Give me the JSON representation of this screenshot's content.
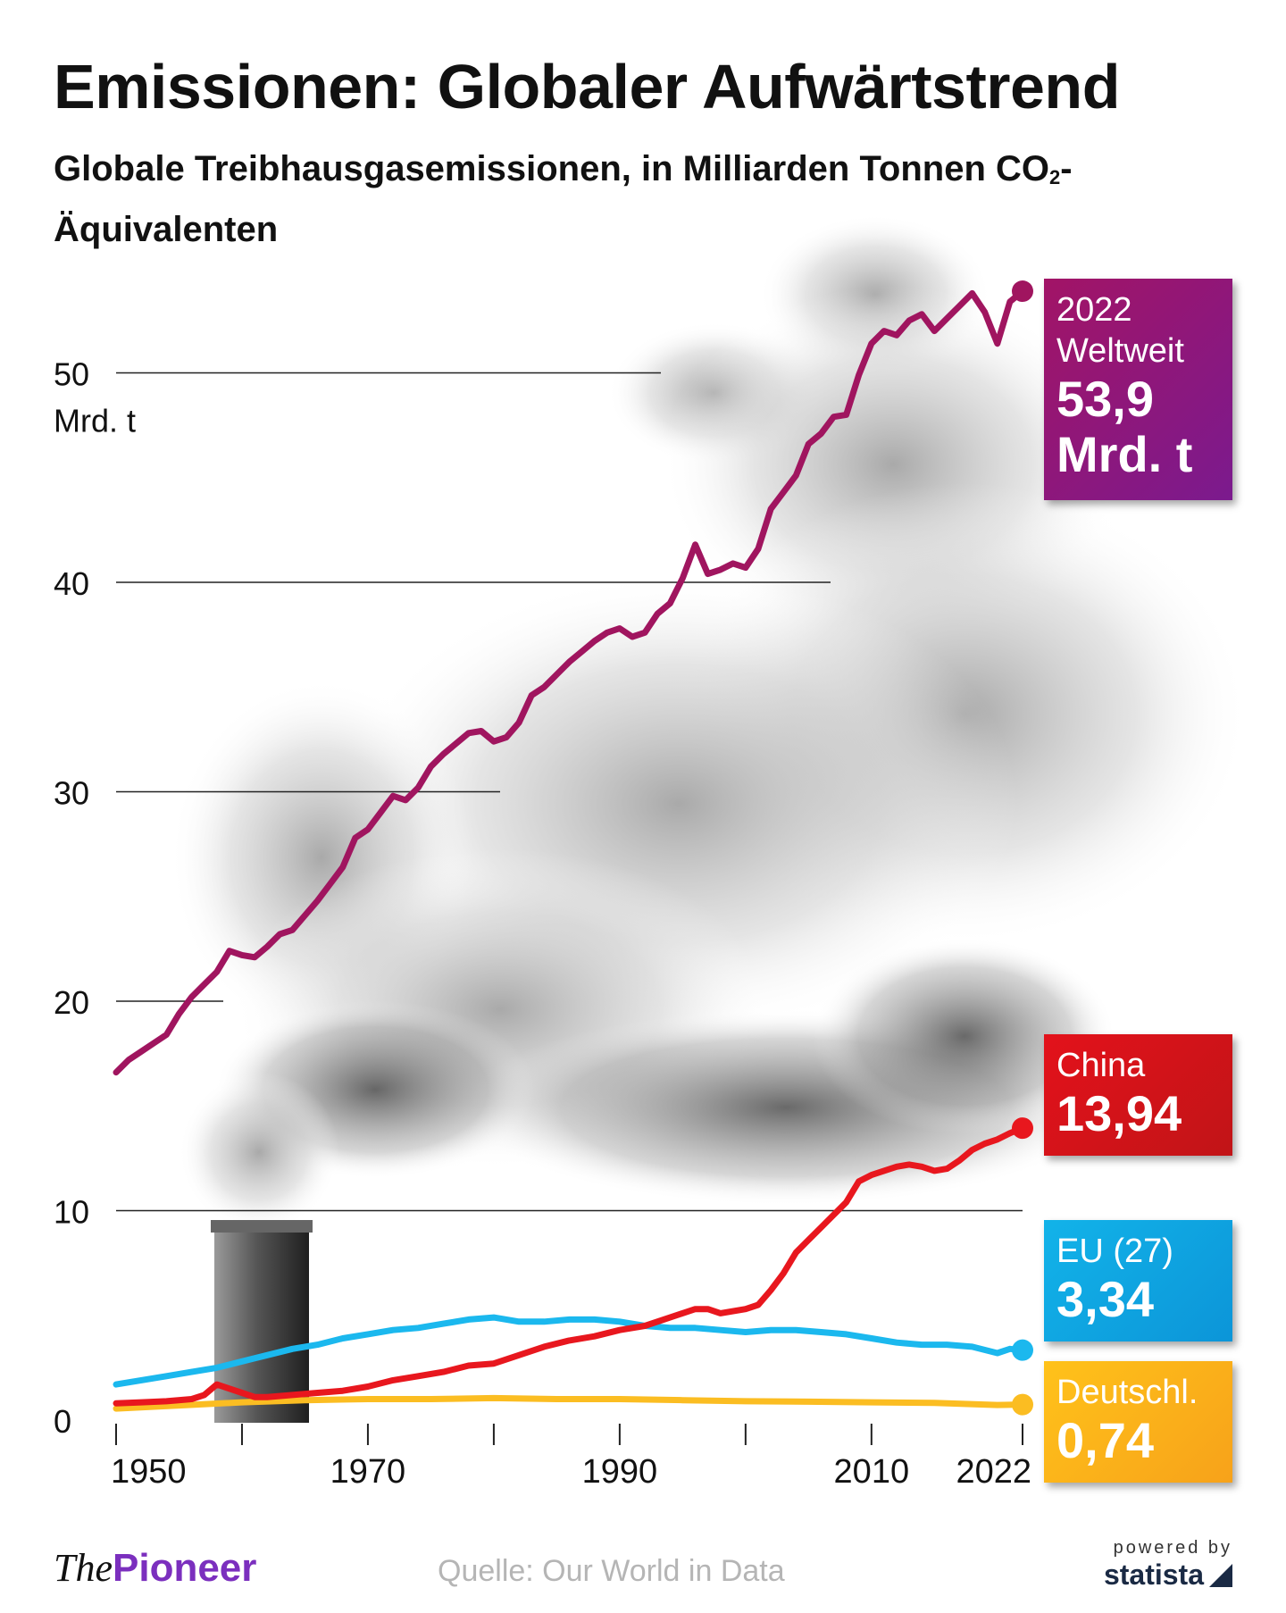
{
  "header": {
    "title": "Emissionen: Globaler Aufwärtstrend",
    "subtitle_part1": "Globale Treibhausgasemissionen, in Milliarden Tonnen CO",
    "subtitle_sub": "2",
    "subtitle_part2": "-Äquivalenten"
  },
  "chart_data": {
    "type": "line",
    "ylim": [
      0,
      55
    ],
    "xlim": [
      1950,
      2022
    ],
    "y_ticks": [
      "0",
      "10",
      "20",
      "30",
      "40",
      "50"
    ],
    "y_unit": "Mrd. t",
    "x_ticks": [
      "1950",
      "1970",
      "1990",
      "2010",
      "2022"
    ],
    "x_minor_ticks": [
      1950,
      1960,
      1970,
      1980,
      1990,
      2000,
      2010,
      2022
    ],
    "grid": true,
    "series": [
      {
        "name": "Weltweit",
        "color": "#a0155f",
        "x": [
          1950,
          1951,
          1952,
          1953,
          1954,
          1955,
          1956,
          1957,
          1958,
          1959,
          1960,
          1961,
          1962,
          1963,
          1964,
          1965,
          1966,
          1967,
          1968,
          1969,
          1970,
          1971,
          1972,
          1973,
          1974,
          1975,
          1976,
          1977,
          1978,
          1979,
          1980,
          1981,
          1982,
          1983,
          1984,
          1985,
          1986,
          1987,
          1988,
          1989,
          1990,
          1991,
          1992,
          1993,
          1994,
          1995,
          1996,
          1997,
          1998,
          1999,
          2000,
          2001,
          2002,
          2003,
          2004,
          2005,
          2006,
          2007,
          2008,
          2009,
          2010,
          2011,
          2012,
          2013,
          2014,
          2015,
          2016,
          2017,
          2018,
          2019,
          2020,
          2021,
          2022
        ],
        "values": [
          16.6,
          17.2,
          17.6,
          18.0,
          18.4,
          19.4,
          20.2,
          20.8,
          21.4,
          22.4,
          22.2,
          22.1,
          22.6,
          23.2,
          23.4,
          24.1,
          24.8,
          25.6,
          26.4,
          27.8,
          28.2,
          29.0,
          29.8,
          29.6,
          30.2,
          31.2,
          31.8,
          32.3,
          32.8,
          32.9,
          32.4,
          32.6,
          33.3,
          34.6,
          35.0,
          35.6,
          36.2,
          36.7,
          37.2,
          37.6,
          37.8,
          37.4,
          37.6,
          38.5,
          39.0,
          40.2,
          41.8,
          40.4,
          40.6,
          40.9,
          40.7,
          41.6,
          43.5,
          44.3,
          45.1,
          46.6,
          47.1,
          47.9,
          48.0,
          49.9,
          51.4,
          52.0,
          51.8,
          52.5,
          52.8,
          52.0,
          52.6,
          53.2,
          53.8,
          52.9,
          51.4,
          53.4,
          53.9
        ]
      },
      {
        "name": "China",
        "color": "#e8171e",
        "x": [
          1950,
          1952,
          1954,
          1956,
          1957,
          1958,
          1959,
          1960,
          1961,
          1962,
          1964,
          1966,
          1968,
          1970,
          1972,
          1974,
          1976,
          1978,
          1980,
          1982,
          1984,
          1986,
          1988,
          1990,
          1992,
          1994,
          1996,
          1997,
          1998,
          1999,
          2000,
          2001,
          2002,
          2003,
          2004,
          2005,
          2006,
          2007,
          2008,
          2009,
          2010,
          2011,
          2012,
          2013,
          2014,
          2015,
          2016,
          2017,
          2018,
          2019,
          2020,
          2021,
          2022
        ],
        "values": [
          0.8,
          0.85,
          0.9,
          1.0,
          1.2,
          1.7,
          1.5,
          1.3,
          1.1,
          1.1,
          1.2,
          1.3,
          1.4,
          1.6,
          1.9,
          2.1,
          2.3,
          2.6,
          2.7,
          3.1,
          3.5,
          3.8,
          4.0,
          4.3,
          4.5,
          4.9,
          5.3,
          5.3,
          5.1,
          5.2,
          5.3,
          5.5,
          6.2,
          7.0,
          8.0,
          8.6,
          9.2,
          9.8,
          10.4,
          11.4,
          11.7,
          11.9,
          12.1,
          12.2,
          12.1,
          11.9,
          12.0,
          12.4,
          12.9,
          13.2,
          13.4,
          13.7,
          13.94
        ]
      },
      {
        "name": "EU (27)",
        "color": "#1bb8ee",
        "x": [
          1950,
          1952,
          1954,
          1956,
          1958,
          1960,
          1962,
          1964,
          1966,
          1968,
          1970,
          1972,
          1974,
          1976,
          1978,
          1980,
          1982,
          1984,
          1986,
          1988,
          1990,
          1992,
          1994,
          1996,
          1998,
          2000,
          2002,
          2004,
          2006,
          2008,
          2010,
          2012,
          2014,
          2016,
          2018,
          2020,
          2021,
          2022
        ],
        "values": [
          1.7,
          1.9,
          2.1,
          2.3,
          2.5,
          2.8,
          3.1,
          3.4,
          3.6,
          3.9,
          4.1,
          4.3,
          4.4,
          4.6,
          4.8,
          4.9,
          4.7,
          4.7,
          4.8,
          4.8,
          4.7,
          4.5,
          4.4,
          4.4,
          4.3,
          4.2,
          4.3,
          4.3,
          4.2,
          4.1,
          3.9,
          3.7,
          3.6,
          3.6,
          3.5,
          3.2,
          3.4,
          3.34
        ]
      },
      {
        "name": "Deutschl.",
        "color": "#fbbd22",
        "x": [
          1950,
          1955,
          1960,
          1965,
          1970,
          1975,
          1980,
          1985,
          1990,
          1995,
          2000,
          2005,
          2010,
          2015,
          2020,
          2022
        ],
        "values": [
          0.55,
          0.7,
          0.85,
          0.95,
          1.0,
          1.0,
          1.05,
          1.0,
          1.0,
          0.95,
          0.9,
          0.88,
          0.85,
          0.82,
          0.72,
          0.74
        ]
      }
    ]
  },
  "callouts": {
    "world": {
      "label1": "2022",
      "label2": "Weltweit",
      "value1": "53,9",
      "value2": "Mrd. t"
    },
    "china": {
      "label": "China",
      "value": "13,94"
    },
    "eu": {
      "label": "EU (27)",
      "value": "3,34"
    },
    "de": {
      "label": "Deutschl.",
      "value": "0,74"
    }
  },
  "footer": {
    "logo_the": "The",
    "logo_pioneer": "Pioneer",
    "source": "Quelle: Our World in Data",
    "powered_by": "powered by",
    "statista": "statista"
  }
}
